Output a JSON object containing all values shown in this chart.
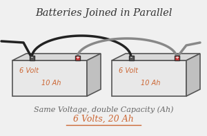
{
  "title": "Batteries Joined in Parallel",
  "subtitle_line1": "Same Voltage, double Capacity (Ah)",
  "subtitle_line2": "6 Volts, 20 Ah",
  "voltage_label": "6 Volt",
  "ah_label": "10 Ah",
  "bg_color": "#f0f0f0",
  "battery_fill": "#e8e8e8",
  "battery_edge": "#555555",
  "battery_top_fill": "#d8d8d8",
  "battery_side_fill": "#c0c0c0",
  "label_color_voltage": "#cc6633",
  "label_color_ah": "#cc6633",
  "subtitle1_color": "#666666",
  "subtitle2_color": "#cc6633",
  "title_color": "#333333",
  "wire_black": "#222222",
  "wire_gray": "#888888",
  "terminal_minus_fill": "#555555",
  "terminal_plus_fill": "#cc3333",
  "terminal_border": "#333333"
}
